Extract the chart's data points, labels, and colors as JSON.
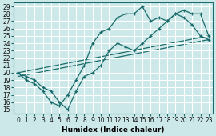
{
  "xlabel": "Humidex (Indice chaleur)",
  "bg_color": "#cce8e8",
  "line_color": "#1a6b6b",
  "grid_color": "#ffffff",
  "xlim": [
    -0.5,
    23.5
  ],
  "ylim": [
    14.5,
    29.5
  ],
  "xticks": [
    0,
    1,
    2,
    3,
    4,
    5,
    6,
    7,
    8,
    9,
    10,
    11,
    12,
    13,
    14,
    15,
    16,
    17,
    18,
    19,
    20,
    21,
    22,
    23
  ],
  "yticks": [
    15,
    16,
    17,
    18,
    19,
    20,
    21,
    22,
    23,
    24,
    25,
    26,
    27,
    28,
    29
  ],
  "line1_x": [
    0,
    1,
    2,
    3,
    4,
    5,
    6,
    7,
    8,
    9,
    10,
    11,
    12,
    13,
    14,
    15,
    16,
    17,
    18,
    19,
    20,
    21,
    22,
    23
  ],
  "line1_y": [
    20,
    19.5,
    19,
    18,
    17.5,
    16,
    15,
    17.5,
    19.5,
    20,
    21,
    23,
    24,
    23.5,
    23,
    24,
    25,
    26,
    27,
    28,
    28.5,
    28,
    28,
    25
  ],
  "line2_x": [
    0,
    1,
    2,
    3,
    4,
    5,
    6,
    7,
    8,
    9,
    10,
    11,
    12,
    13,
    14,
    15,
    16,
    17,
    18,
    19,
    20,
    21,
    22,
    23
  ],
  "line2_y": [
    20,
    19,
    18.5,
    17.5,
    16,
    15.5,
    17,
    19,
    21,
    24,
    25.5,
    26,
    27.5,
    28,
    28,
    29,
    27,
    27.5,
    27,
    28,
    27.5,
    26.5,
    25,
    24.5
  ],
  "line3_x": [
    0,
    23
  ],
  "line3_y": [
    20,
    25
  ],
  "line4_x": [
    0,
    23
  ],
  "line4_y": [
    19.5,
    24.5
  ],
  "xlabel_fontsize": 6.5,
  "tick_fontsize": 5.5
}
